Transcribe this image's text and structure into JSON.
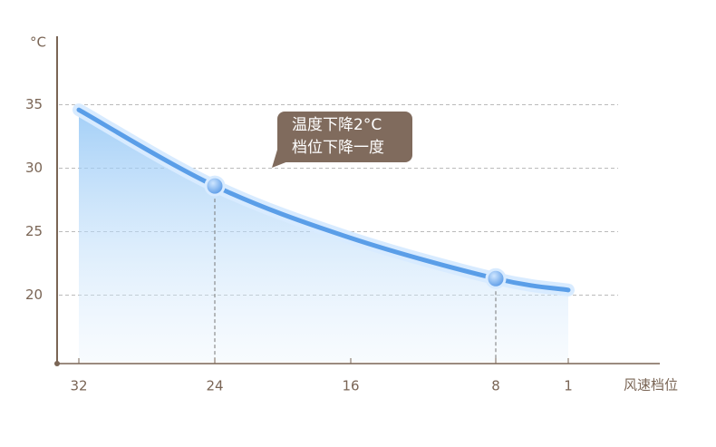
{
  "chart_data": {
    "type": "line",
    "y_label": "°C",
    "x_label": "风速档位",
    "categories": [
      "32",
      "24",
      "16",
      "8",
      "1"
    ],
    "series": [
      {
        "name": null,
        "color": "#5a9ee8",
        "values": [
          34.6,
          28.6,
          24.5,
          21.3,
          20.4
        ]
      }
    ],
    "markers": [
      1,
      3
    ],
    "ylim": [
      14.6,
      40.4
    ],
    "yticks": [
      20,
      25,
      30,
      35
    ],
    "grid": true,
    "annotation": [
      "温度下降2°C",
      "档位下降一度"
    ]
  }
}
